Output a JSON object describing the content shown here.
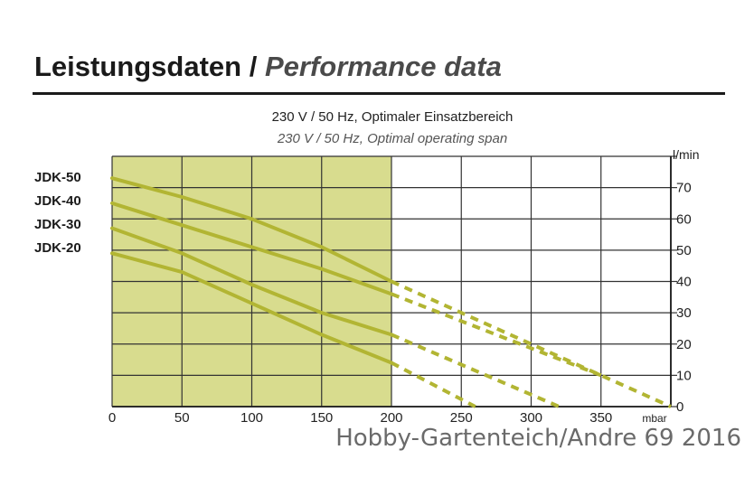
{
  "header": {
    "title_de": "Leistungsdaten",
    "separator": "/",
    "title_en": "Performance data"
  },
  "subtitle_de": "230 V / 50 Hz, Optimaler Einsatzbereich",
  "subtitle_en": "230 V / 50 Hz, Optimal operating span",
  "watermark": "Hobby-Gartenteich/Andre 69 2016",
  "colors": {
    "optimal_span": "#d8dc8e",
    "curve": "#b2b533",
    "grid": "#333333"
  },
  "chart_data": {
    "type": "line",
    "xlabel": "mbar",
    "ylabel": "l/min",
    "xlim": [
      0,
      400
    ],
    "ylim": [
      0,
      80
    ],
    "x_ticks": [
      0,
      50,
      100,
      150,
      200,
      250,
      300,
      350
    ],
    "y_ticks": [
      0,
      10,
      20,
      30,
      40,
      50,
      60,
      70
    ],
    "x_tick_labels": [
      "0",
      "50",
      "100",
      "150",
      "200",
      "250",
      "300",
      "350"
    ],
    "y_tick_labels": [
      "0",
      "10",
      "20",
      "30",
      "40",
      "50",
      "60",
      "70"
    ],
    "optimal_range": [
      0,
      200
    ],
    "series": [
      {
        "name": "JDK-50",
        "solid": [
          [
            0,
            73
          ],
          [
            50,
            67
          ],
          [
            100,
            60
          ],
          [
            150,
            51
          ],
          [
            200,
            40
          ]
        ],
        "dashed": [
          [
            200,
            40
          ],
          [
            400,
            0
          ]
        ]
      },
      {
        "name": "JDK-40",
        "solid": [
          [
            0,
            65
          ],
          [
            50,
            58
          ],
          [
            100,
            51
          ],
          [
            150,
            44
          ],
          [
            200,
            36
          ]
        ],
        "dashed": [
          [
            200,
            36
          ],
          [
            350,
            10
          ]
        ]
      },
      {
        "name": "JDK-30",
        "solid": [
          [
            0,
            57
          ],
          [
            50,
            49
          ],
          [
            100,
            39
          ],
          [
            150,
            30
          ],
          [
            200,
            23
          ]
        ],
        "dashed": [
          [
            200,
            23
          ],
          [
            320,
            0
          ]
        ]
      },
      {
        "name": "JDK-20",
        "solid": [
          [
            0,
            49
          ],
          [
            50,
            43
          ],
          [
            100,
            33
          ],
          [
            150,
            23
          ],
          [
            200,
            14
          ]
        ],
        "dashed": [
          [
            200,
            14
          ],
          [
            260,
            0
          ]
        ]
      }
    ]
  }
}
